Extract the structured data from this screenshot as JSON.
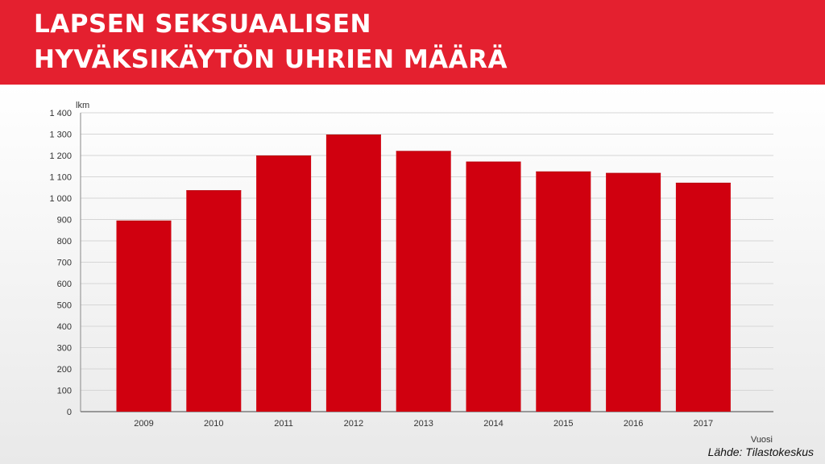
{
  "header": {
    "title_line1": "LAPSEN SEKSUAALISEN",
    "title_line2": "HYVÄKSIKÄYTÖN UHRIEN MÄÄRÄ"
  },
  "source": "Lähde: Tilastokeskus",
  "colors": {
    "header": "#e4202f",
    "bar": "#d0000f",
    "background": "#efefef"
  },
  "chart_data": {
    "type": "bar",
    "title": "LAPSEN SEKSUAALISEN HYVÄKSIKÄYTÖN UHRIEN MÄÄRÄ",
    "ylabel": "lkm",
    "xlabel": "Vuosi",
    "ylim": [
      0,
      1400
    ],
    "ytick_step": 100,
    "ytick_labels": [
      "0",
      "100",
      "200",
      "300",
      "400",
      "500",
      "600",
      "700",
      "800",
      "900",
      "1 000",
      "1 100",
      "1 200",
      "1 300",
      "1 400"
    ],
    "grid": true,
    "categories": [
      "2009",
      "2010",
      "2011",
      "2012",
      "2013",
      "2014",
      "2015",
      "2016",
      "2017"
    ],
    "values": [
      895,
      1037,
      1200,
      1298,
      1221,
      1171,
      1125,
      1118,
      1072
    ]
  }
}
